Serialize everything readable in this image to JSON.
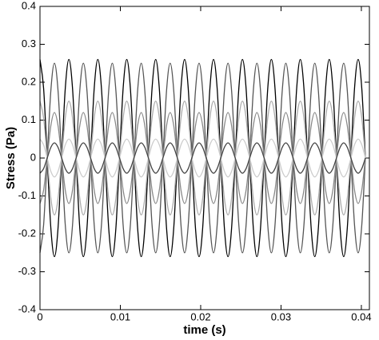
{
  "chart_data": {
    "type": "line",
    "xlabel": "time (s)",
    "ylabel": "Stress (Pa)",
    "xlim": [
      0,
      0.041
    ],
    "ylim": [
      -0.4,
      0.4
    ],
    "xticks": [
      0,
      0.01,
      0.02,
      0.03,
      0.04
    ],
    "yticks": [
      -0.4,
      -0.3,
      -0.2,
      -0.1,
      0,
      0.1,
      0.2,
      0.3,
      0.4
    ],
    "x": [
      0,
      0.00045,
      0.0009,
      0.00135,
      0.0018,
      0.00225,
      0.0027,
      0.00315,
      0.0036,
      0.00405,
      0.0045,
      0.00495,
      0.0054,
      0.00585,
      0.0063,
      0.00675,
      0.0072,
      0.00765,
      0.0081,
      0.00855,
      0.009,
      0.00945,
      0.0099,
      0.01035,
      0.0108,
      0.01125,
      0.0117,
      0.01215,
      0.0126,
      0.01305,
      0.0135,
      0.01395,
      0.0144,
      0.01485,
      0.0153,
      0.01575,
      0.0162,
      0.01665,
      0.0171,
      0.01755,
      0.018,
      0.01845,
      0.0189,
      0.01935,
      0.0198,
      0.02025,
      0.0207,
      0.02115,
      0.0216,
      0.02205,
      0.0225,
      0.02295,
      0.0234,
      0.02385,
      0.0243,
      0.02475,
      0.0252,
      0.02565,
      0.0261,
      0.02655,
      0.027,
      0.02745,
      0.0279,
      0.02835,
      0.0288,
      0.02925,
      0.0297,
      0.03015,
      0.0306,
      0.03105,
      0.0315,
      0.03195,
      0.0324,
      0.03285,
      0.0333,
      0.03375,
      0.0342,
      0.03465,
      0.0351,
      0.03555,
      0.036,
      0.03645,
      0.0369,
      0.03735,
      0.0378,
      0.03825,
      0.0387,
      0.03915,
      0.0396,
      0.04005,
      0.0405
    ],
    "series": [
      {
        "color": "#000000",
        "values": [
          0.26,
          0.184,
          0,
          -0.184,
          -0.26,
          -0.184,
          0,
          0.184,
          0.26,
          0.184,
          0,
          -0.184,
          -0.26,
          -0.184,
          0,
          0.184,
          0.26,
          0.184,
          0,
          -0.184,
          -0.26,
          -0.184,
          0,
          0.184,
          0.26,
          0.184,
          0,
          -0.184,
          -0.26,
          -0.184,
          0,
          0.184,
          0.26,
          0.184,
          0,
          -0.184,
          -0.26,
          -0.184,
          0,
          0.184,
          0.26,
          0.184,
          0,
          -0.184,
          -0.26,
          -0.184,
          0,
          0.184,
          0.26,
          0.184,
          0,
          -0.184,
          -0.26,
          -0.184,
          0,
          0.184,
          0.26,
          0.184,
          0,
          -0.184,
          -0.26,
          -0.184,
          0,
          0.184,
          0.26,
          0.184,
          0,
          -0.184,
          -0.26,
          -0.184,
          0,
          0.184,
          0.26,
          0.184,
          0,
          -0.184,
          -0.26,
          -0.184,
          0,
          0.184,
          0.26,
          0.184,
          0,
          -0.184,
          -0.26,
          -0.184,
          0,
          0.184,
          0.26,
          0.184,
          0
        ]
      },
      {
        "color": "#555555",
        "values": [
          -0.25,
          -0.177,
          0,
          0.177,
          0.25,
          0.177,
          0,
          -0.177,
          -0.25,
          -0.177,
          0,
          0.177,
          0.25,
          0.177,
          0,
          -0.177,
          -0.25,
          -0.177,
          0,
          0.177,
          0.25,
          0.177,
          0,
          -0.177,
          -0.25,
          -0.177,
          0,
          0.177,
          0.25,
          0.177,
          0,
          -0.177,
          -0.25,
          -0.177,
          0,
          0.177,
          0.25,
          0.177,
          0,
          -0.177,
          -0.25,
          -0.177,
          0,
          0.177,
          0.25,
          0.177,
          0,
          -0.177,
          -0.25,
          -0.177,
          0,
          0.177,
          0.25,
          0.177,
          0,
          -0.177,
          -0.25,
          -0.177,
          0,
          0.177,
          0.25,
          0.177,
          0,
          -0.177,
          -0.25,
          -0.177,
          0,
          0.177,
          0.25,
          0.177,
          0,
          -0.177,
          -0.25,
          -0.177,
          0,
          0.177,
          0.25,
          0.177,
          0,
          -0.177,
          -0.25,
          -0.177,
          0,
          0.177,
          0.25,
          0.177,
          0,
          -0.177,
          -0.25,
          -0.177,
          0
        ]
      },
      {
        "color": "#aaaaaa",
        "values": [
          0.15,
          0.106,
          0,
          -0.106,
          -0.15,
          -0.106,
          0,
          0.106,
          0.15,
          0.106,
          0,
          -0.106,
          -0.15,
          -0.106,
          0,
          0.106,
          0.15,
          0.106,
          0,
          -0.106,
          -0.15,
          -0.106,
          0,
          0.106,
          0.15,
          0.106,
          0,
          -0.106,
          -0.15,
          -0.106,
          0,
          0.106,
          0.15,
          0.106,
          0,
          -0.106,
          -0.15,
          -0.106,
          0,
          0.106,
          0.15,
          0.106,
          0,
          -0.106,
          -0.15,
          -0.106,
          0,
          0.106,
          0.15,
          0.106,
          0,
          -0.106,
          -0.15,
          -0.106,
          0,
          0.106,
          0.15,
          0.106,
          0,
          -0.106,
          -0.15,
          -0.106,
          0,
          0.106,
          0.15,
          0.106,
          0,
          -0.106,
          -0.15,
          -0.106,
          0,
          0.106,
          0.15,
          0.106,
          0,
          -0.106,
          -0.15,
          -0.106,
          0,
          0.106,
          0.15,
          0.106,
          0,
          -0.106,
          -0.15,
          -0.106,
          0,
          0.106,
          0.15,
          0.106,
          0
        ]
      },
      {
        "color": "#888888",
        "values": [
          -0.12,
          -0.085,
          0,
          0.085,
          0.12,
          0.085,
          0,
          -0.085,
          -0.12,
          -0.085,
          0,
          0.085,
          0.12,
          0.085,
          0,
          -0.085,
          -0.12,
          -0.085,
          0,
          0.085,
          0.12,
          0.085,
          0,
          -0.085,
          -0.12,
          -0.085,
          0,
          0.085,
          0.12,
          0.085,
          0,
          -0.085,
          -0.12,
          -0.085,
          0,
          0.085,
          0.12,
          0.085,
          0,
          -0.085,
          -0.12,
          -0.085,
          0,
          0.085,
          0.12,
          0.085,
          0,
          -0.085,
          -0.12,
          -0.085,
          0,
          0.085,
          0.12,
          0.085,
          0,
          -0.085,
          -0.12,
          -0.085,
          0,
          0.085,
          0.12,
          0.085,
          0,
          -0.085,
          -0.12,
          -0.085,
          0,
          0.085,
          0.12,
          0.085,
          0,
          -0.085,
          -0.12,
          -0.085,
          0,
          0.085,
          0.12,
          0.085,
          0,
          -0.085,
          -0.12,
          -0.085,
          0,
          0.085,
          0.12,
          0.085,
          0,
          -0.085,
          -0.12,
          -0.085,
          0
        ]
      },
      {
        "color": "#cccccc",
        "values": [
          0.05,
          0.035,
          0,
          -0.035,
          -0.05,
          -0.035,
          0,
          0.035,
          0.05,
          0.035,
          0,
          -0.035,
          -0.05,
          -0.035,
          0,
          0.035,
          0.05,
          0.035,
          0,
          -0.035,
          -0.05,
          -0.035,
          0,
          0.035,
          0.05,
          0.035,
          0,
          -0.035,
          -0.05,
          -0.035,
          0,
          0.035,
          0.05,
          0.035,
          0,
          -0.035,
          -0.05,
          -0.035,
          0,
          0.035,
          0.05,
          0.035,
          0,
          -0.035,
          -0.05,
          -0.035,
          0,
          0.035,
          0.05,
          0.035,
          0,
          -0.035,
          -0.05,
          -0.035,
          0,
          0.035,
          0.05,
          0.035,
          0,
          -0.035,
          -0.05,
          -0.035,
          0,
          0.035,
          0.05,
          0.035,
          0,
          -0.035,
          -0.05,
          -0.035,
          0,
          0.035,
          0.05,
          0.035,
          0,
          -0.035,
          -0.05,
          -0.035,
          0,
          0.035,
          0.05,
          0.035,
          0,
          -0.035,
          -0.05,
          -0.035,
          0,
          0.035,
          0.05,
          0.035,
          0
        ]
      },
      {
        "color": "#444444",
        "values": [
          -0.04,
          -0.028,
          0,
          0.028,
          0.04,
          0.028,
          0,
          -0.028,
          -0.04,
          -0.028,
          0,
          0.028,
          0.04,
          0.028,
          0,
          -0.028,
          -0.04,
          -0.028,
          0,
          0.028,
          0.04,
          0.028,
          0,
          -0.028,
          -0.04,
          -0.028,
          0,
          0.028,
          0.04,
          0.028,
          0,
          -0.028,
          -0.04,
          -0.028,
          0,
          0.028,
          0.04,
          0.028,
          0,
          -0.028,
          -0.04,
          -0.028,
          0,
          0.028,
          0.04,
          0.028,
          0,
          -0.028,
          -0.04,
          -0.028,
          0,
          0.028,
          0.04,
          0.028,
          0,
          -0.028,
          -0.04,
          -0.028,
          0,
          0.028,
          0.04,
          0.028,
          0,
          -0.028,
          -0.04,
          -0.028,
          0,
          0.028,
          0.04,
          0.028,
          0,
          -0.028,
          -0.04,
          -0.028,
          0,
          0.028,
          0.04,
          0.028,
          0,
          -0.028,
          -0.04,
          -0.028,
          0,
          0.028,
          0.04,
          0.028,
          0,
          -0.028,
          -0.04,
          -0.028,
          0
        ]
      }
    ]
  }
}
